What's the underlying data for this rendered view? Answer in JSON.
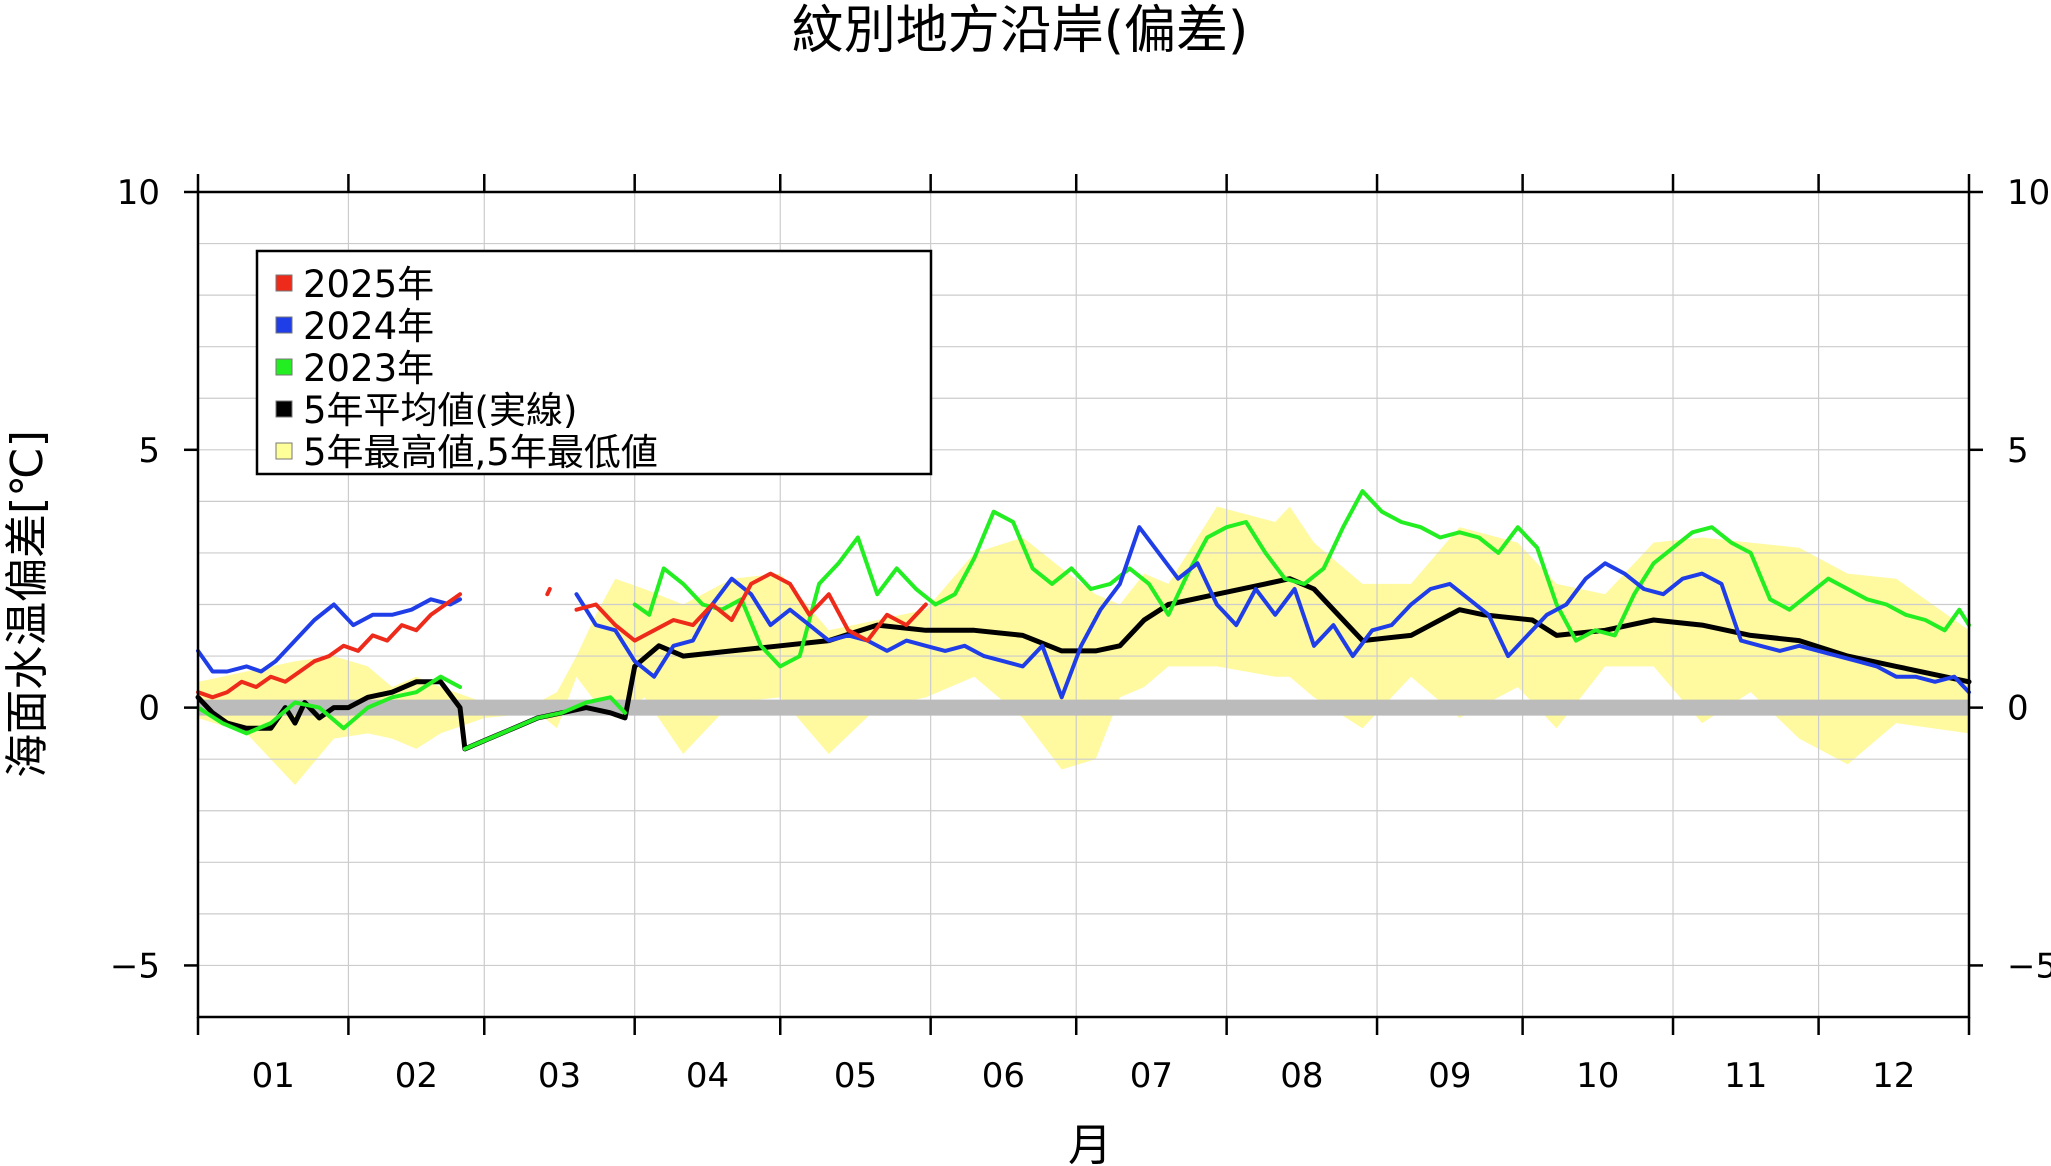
{
  "chart_data": {
    "type": "line",
    "title": "紋別地方沿岸(偏差)",
    "xlabel": "月",
    "ylabel": "海面水温偏差[℃]",
    "ylim": [
      -6,
      10
    ],
    "y_ticks": [
      "10",
      "5",
      "0",
      "−5"
    ],
    "y_tick_values": [
      10,
      5,
      0,
      -5
    ],
    "month_labels": [
      "01",
      "02",
      "03",
      "04",
      "05",
      "06",
      "07",
      "08",
      "09",
      "10",
      "11",
      "12"
    ],
    "month_lengths": [
      31,
      28,
      31,
      30,
      31,
      30,
      31,
      31,
      30,
      31,
      30,
      31
    ],
    "grid": true,
    "legend_position": "top-left",
    "zero_line_color": "#bbbbbb",
    "legend": [
      {
        "label": "2025年",
        "color": "#ee2a1a"
      },
      {
        "label": "2024年",
        "color": "#1f3ee8"
      },
      {
        "label": "2023年",
        "color": "#22ee22"
      },
      {
        "label": "5年平均値(実線)",
        "color": "#000000"
      },
      {
        "label": "5年最高値,5年最低値",
        "color": "#ffff99"
      }
    ],
    "band": {
      "name": "5年最高値,5年最低値",
      "color": "#fff9a0",
      "x": [
        0,
        10,
        20,
        28,
        35,
        40,
        45,
        50,
        59,
        70,
        74,
        78,
        82,
        86,
        92,
        100,
        110,
        120,
        130,
        140,
        150,
        160,
        170,
        178,
        185,
        190,
        195,
        200,
        210,
        222,
        225,
        230,
        240,
        250,
        260,
        272,
        280,
        290,
        300,
        310,
        320,
        330,
        340,
        350,
        365
      ],
      "upper": [
        0.5,
        0.7,
        0.9,
        1.0,
        0.8,
        0.4,
        0.6,
        0.4,
        0.1,
        0.1,
        0.3,
        1.0,
        1.8,
        2.5,
        2.3,
        2.0,
        2.5,
        2.6,
        1.5,
        1.7,
        1.9,
        3.0,
        3.3,
        2.7,
        2.2,
        2.0,
        2.6,
        2.4,
        3.9,
        3.6,
        3.9,
        3.2,
        2.4,
        2.4,
        3.5,
        3.2,
        2.4,
        2.2,
        3.2,
        3.3,
        3.2,
        3.1,
        2.6,
        2.5,
        1.5
      ],
      "lower": [
        -0.2,
        -0.5,
        -1.5,
        -0.6,
        -0.5,
        -0.6,
        -0.8,
        -0.5,
        -0.2,
        -0.1,
        -0.4,
        0.6,
        0.1,
        -0.2,
        0.2,
        -0.9,
        0.1,
        0.2,
        -0.9,
        0.0,
        0.2,
        0.6,
        -0.2,
        -1.2,
        -1.0,
        0.2,
        0.4,
        0.8,
        0.8,
        0.6,
        0.6,
        0.2,
        -0.4,
        0.6,
        -0.2,
        0.4,
        -0.4,
        0.8,
        0.8,
        -0.3,
        0.3,
        -0.6,
        -1.1,
        -0.3,
        -0.5
      ]
    },
    "series": [
      {
        "name": "5年平均値(実線)",
        "color": "#000000",
        "width": 5,
        "segments": [
          {
            "x": [
              0,
              3,
              6,
              10,
              15,
              18,
              20,
              22,
              25,
              28,
              31,
              35,
              40,
              45,
              50,
              54,
              55,
              60,
              65,
              70,
              75,
              80,
              85,
              88,
              90,
              95,
              100,
              110,
              120,
              130,
              140,
              150,
              160,
              170,
              178,
              185,
              190,
              195,
              200,
              210,
              220,
              225,
              230,
              240,
              250,
              260,
              265,
              275,
              280,
              290,
              300,
              310,
              320,
              330,
              340,
              350,
              365
            ],
            "y": [
              0.2,
              -0.1,
              -0.3,
              -0.4,
              -0.4,
              0.0,
              -0.3,
              0.1,
              -0.2,
              0.0,
              0.0,
              0.2,
              0.3,
              0.5,
              0.5,
              0.0,
              -0.8,
              -0.6,
              -0.4,
              -0.2,
              -0.1,
              0.0,
              -0.1,
              -0.2,
              0.8,
              1.2,
              1.0,
              1.1,
              1.2,
              1.3,
              1.6,
              1.5,
              1.5,
              1.4,
              1.1,
              1.1,
              1.2,
              1.7,
              2.0,
              2.2,
              2.4,
              2.5,
              2.3,
              1.3,
              1.4,
              1.9,
              1.8,
              1.7,
              1.4,
              1.5,
              1.7,
              1.6,
              1.4,
              1.3,
              1.0,
              0.8,
              0.5
            ]
          }
        ]
      },
      {
        "name": "2023年",
        "color": "#22ee22",
        "width": 4,
        "segments": [
          {
            "x": [
              0,
              5,
              10,
              15,
              20,
              25,
              30,
              35,
              40,
              45,
              50,
              54
            ],
            "y": [
              0.0,
              -0.3,
              -0.5,
              -0.3,
              0.1,
              0.0,
              -0.4,
              0.0,
              0.2,
              0.3,
              0.6,
              0.4
            ]
          },
          {
            "x": [
              55,
              60,
              65,
              70,
              75,
              80,
              85,
              88
            ],
            "y": [
              -0.8,
              -0.6,
              -0.4,
              -0.2,
              -0.1,
              0.1,
              0.2,
              -0.1
            ]
          },
          {
            "x": [
              90,
              93,
              96,
              100,
              104,
              108,
              112,
              116,
              120,
              124,
              128,
              132,
              136,
              140,
              144,
              148,
              152,
              156,
              160,
              164,
              168,
              172,
              176,
              180,
              184,
              188,
              192,
              196,
              200,
              204,
              208,
              212,
              216,
              220,
              224,
              228,
              232,
              236,
              240,
              244,
              248,
              252,
              256,
              260,
              264,
              268,
              272,
              276,
              280,
              284,
              288,
              292,
              296,
              300,
              304,
              308,
              312,
              316,
              320,
              324,
              328,
              332,
              336,
              340,
              344,
              348,
              352,
              356,
              360,
              363,
              365
            ],
            "y": [
              2.0,
              1.8,
              2.7,
              2.4,
              2.0,
              1.9,
              2.1,
              1.2,
              0.8,
              1.0,
              2.4,
              2.8,
              3.3,
              2.2,
              2.7,
              2.3,
              2.0,
              2.2,
              2.9,
              3.8,
              3.6,
              2.7,
              2.4,
              2.7,
              2.3,
              2.4,
              2.7,
              2.4,
              1.8,
              2.6,
              3.3,
              3.5,
              3.6,
              3.0,
              2.5,
              2.4,
              2.7,
              3.5,
              4.2,
              3.8,
              3.6,
              3.5,
              3.3,
              3.4,
              3.3,
              3.0,
              3.5,
              3.1,
              2.0,
              1.3,
              1.5,
              1.4,
              2.2,
              2.8,
              3.1,
              3.4,
              3.5,
              3.2,
              3.0,
              2.1,
              1.9,
              2.2,
              2.5,
              2.3,
              2.1,
              2.0,
              1.8,
              1.7,
              1.5,
              1.9,
              1.6
            ]
          }
        ]
      },
      {
        "name": "2024年",
        "color": "#1f3ee8",
        "width": 4,
        "segments": [
          {
            "x": [
              0,
              3,
              6,
              10,
              13,
              16,
              20,
              24,
              28,
              32,
              36,
              40,
              44,
              48,
              52,
              54
            ],
            "y": [
              1.1,
              0.7,
              0.7,
              0.8,
              0.7,
              0.9,
              1.3,
              1.7,
              2.0,
              1.6,
              1.8,
              1.8,
              1.9,
              2.1,
              2.0,
              2.1
            ]
          },
          {
            "x": [
              78,
              82,
              86,
              90,
              94,
              98,
              102,
              106,
              110,
              114,
              118,
              122,
              126,
              130,
              134,
              138,
              142,
              146,
              150,
              154,
              158,
              162,
              166,
              170,
              174,
              178,
              182,
              186,
              190,
              194,
              198,
              202,
              206,
              210,
              214,
              218,
              222,
              226,
              230,
              234,
              238,
              242,
              246,
              250,
              254,
              258,
              262,
              266,
              270,
              274,
              278,
              282,
              286,
              290,
              294,
              298,
              302,
              306,
              310,
              314,
              318,
              322,
              326,
              330,
              334,
              338,
              342,
              346,
              350,
              354,
              358,
              362,
              365
            ],
            "y": [
              2.2,
              1.6,
              1.5,
              0.9,
              0.6,
              1.2,
              1.3,
              2.0,
              2.5,
              2.2,
              1.6,
              1.9,
              1.6,
              1.3,
              1.4,
              1.3,
              1.1,
              1.3,
              1.2,
              1.1,
              1.2,
              1.0,
              0.9,
              0.8,
              1.2,
              0.2,
              1.2,
              1.9,
              2.4,
              3.5,
              3.0,
              2.5,
              2.8,
              2.0,
              1.6,
              2.3,
              1.8,
              2.3,
              1.2,
              1.6,
              1.0,
              1.5,
              1.6,
              2.0,
              2.3,
              2.4,
              2.1,
              1.8,
              1.0,
              1.4,
              1.8,
              2.0,
              2.5,
              2.8,
              2.6,
              2.3,
              2.2,
              2.5,
              2.6,
              2.4,
              1.3,
              1.2,
              1.1,
              1.2,
              1.1,
              1.0,
              0.9,
              0.8,
              0.6,
              0.6,
              0.5,
              0.6,
              0.3
            ]
          }
        ]
      },
      {
        "name": "2025年",
        "color": "#ee2a1a",
        "width": 4,
        "segments": [
          {
            "x": [
              0,
              3,
              6,
              9,
              12,
              15,
              18,
              21,
              24,
              27,
              30,
              33,
              36,
              39,
              42,
              45,
              48,
              51,
              54
            ],
            "y": [
              0.3,
              0.2,
              0.3,
              0.5,
              0.4,
              0.6,
              0.5,
              0.7,
              0.9,
              1.0,
              1.2,
              1.1,
              1.4,
              1.3,
              1.6,
              1.5,
              1.8,
              2.0,
              2.2
            ]
          },
          {
            "x": [
              72,
              72.5
            ],
            "y": [
              2.2,
              2.3
            ]
          },
          {
            "x": [
              78,
              82,
              86,
              90,
              94,
              98,
              102,
              106,
              110,
              114,
              118,
              122,
              126,
              130,
              134,
              138,
              142,
              146,
              150
            ],
            "y": [
              1.9,
              2.0,
              1.6,
              1.3,
              1.5,
              1.7,
              1.6,
              2.0,
              1.7,
              2.4,
              2.6,
              2.4,
              1.8,
              2.2,
              1.5,
              1.3,
              1.8,
              1.6,
              2.0
            ]
          }
        ]
      }
    ]
  }
}
